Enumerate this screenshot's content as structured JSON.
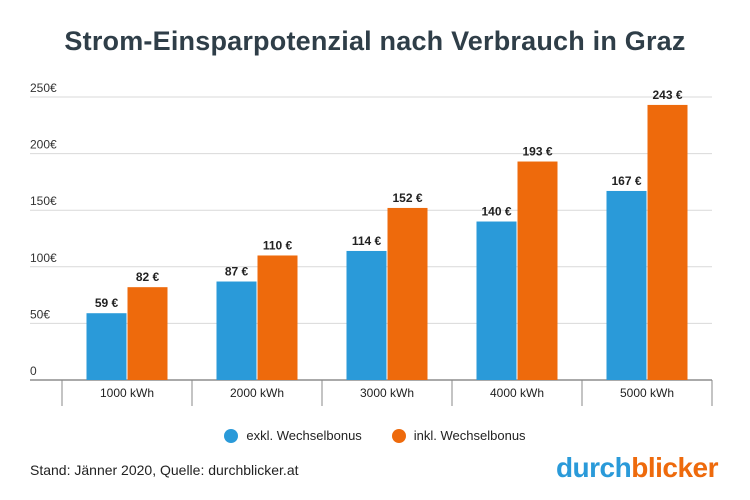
{
  "chart_data": {
    "type": "bar",
    "title": "Strom-Einsparpotenzial nach Verbrauch in Graz",
    "categories": [
      "1000 kWh",
      "2000 kWh",
      "3000 kWh",
      "4000 kWh",
      "5000 kWh"
    ],
    "series": [
      {
        "name": "exkl. Wechselbonus",
        "color": "#2a9ad9",
        "values": [
          59,
          87,
          114,
          140,
          167
        ],
        "labels": [
          "59 €",
          "87 €",
          "114 €",
          "140 €",
          "167 €"
        ]
      },
      {
        "name": "inkl. Wechselbonus",
        "color": "#ee6a0c",
        "values": [
          82,
          110,
          152,
          193,
          243
        ],
        "labels": [
          "82 €",
          "110 €",
          "152 €",
          "193 €",
          "243 €"
        ]
      }
    ],
    "ylim": [
      0,
      250
    ],
    "yticks": [
      0,
      50,
      100,
      150,
      200,
      250
    ],
    "ytick_labels": [
      "0",
      "50€",
      "100€",
      "150€",
      "200€",
      "250€"
    ],
    "grid": true,
    "legend": "bottom"
  },
  "source_text": "Stand: Jänner 2020, Quelle: durchblicker.at",
  "logo": {
    "part1": "durch",
    "part2": "blicker"
  }
}
